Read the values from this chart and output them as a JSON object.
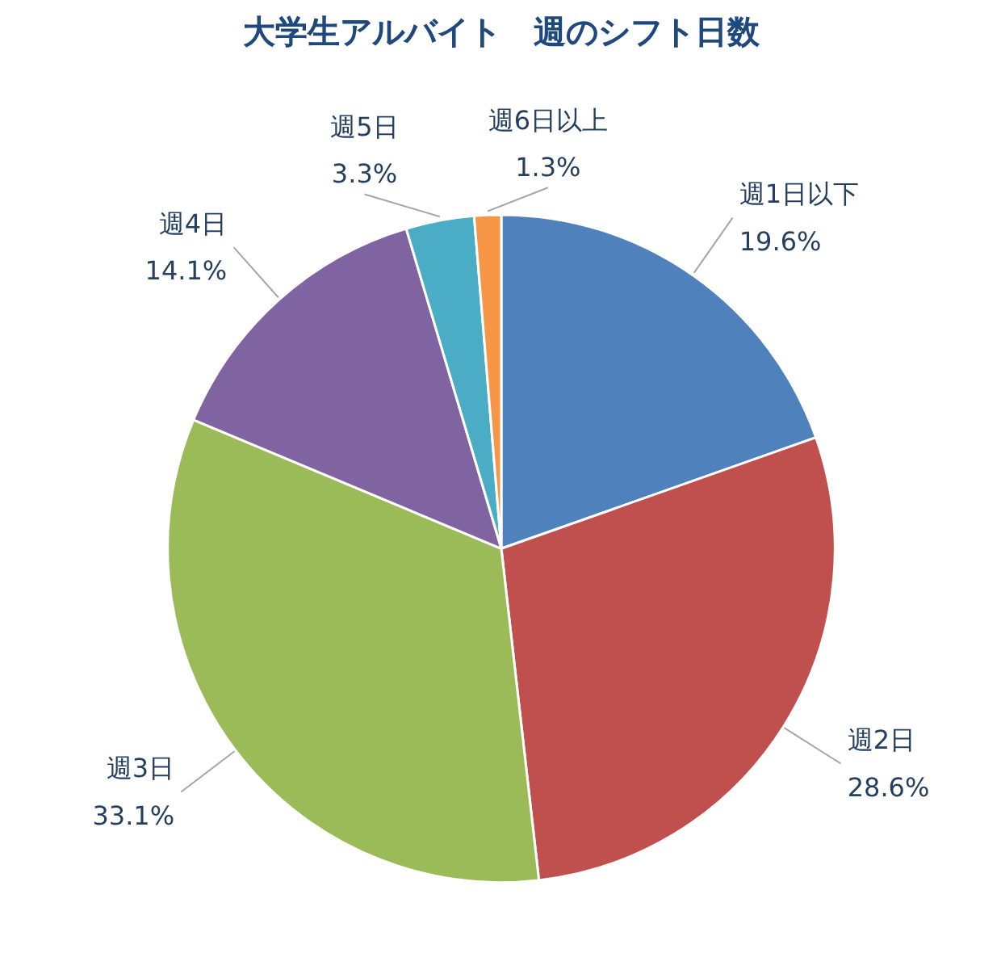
{
  "chart_data": {
    "type": "pie",
    "title": "大学生アルバイト　週のシフト日数",
    "categories": [
      "週1日以下",
      "週2日",
      "週3日",
      "週4日",
      "週5日",
      "週6日以上"
    ],
    "values": [
      19.6,
      28.6,
      33.1,
      14.1,
      3.3,
      1.3
    ],
    "value_labels": [
      "19.6%",
      "28.6%",
      "33.1%",
      "14.1%",
      "3.3%",
      "1.3%"
    ],
    "colors": [
      "#4f81bd",
      "#c0504d",
      "#9bbb59",
      "#8064a2",
      "#4bacc6",
      "#f79646"
    ],
    "legend": false
  }
}
